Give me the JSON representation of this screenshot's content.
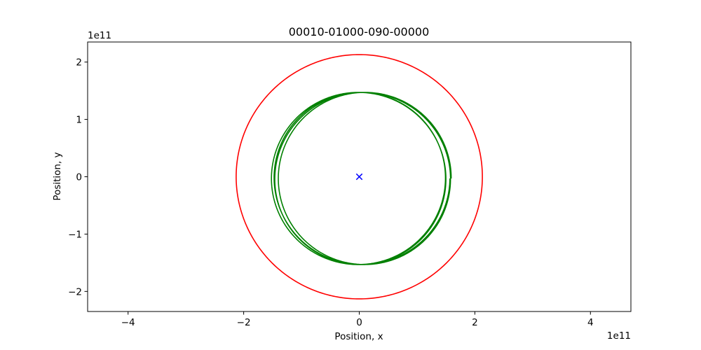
{
  "chart_data": {
    "type": "line",
    "title": "00010-01000-090-00000",
    "xlabel": "Position, x",
    "ylabel": "Position, y",
    "x_offset_text": "1e11",
    "y_offset_text": "1e11",
    "xlim": [
      -4.7,
      4.7
    ],
    "ylim": [
      -2.35,
      2.35
    ],
    "x_ticks": [
      {
        "value": -4,
        "label": "−4"
      },
      {
        "value": -2,
        "label": "−2"
      },
      {
        "value": 0,
        "label": "0"
      },
      {
        "value": 2,
        "label": "2"
      },
      {
        "value": 4,
        "label": "4"
      }
    ],
    "y_ticks": [
      {
        "value": -2,
        "label": "−2"
      },
      {
        "value": -1,
        "label": "−1"
      },
      {
        "value": 0,
        "label": "0"
      },
      {
        "value": 1,
        "label": "1"
      },
      {
        "value": 2,
        "label": "2"
      }
    ],
    "units_scale": "1e11",
    "grid": false,
    "aspect": "equal",
    "series": [
      {
        "color": "#ff0000",
        "kind": "orbit",
        "center": [
          0,
          0
        ],
        "radius": 2.13,
        "radius_variation": 0.0,
        "loops": 1
      },
      {
        "color": "#008000",
        "kind": "orbit",
        "center": [
          0.04,
          -0.03
        ],
        "radius": 1.5,
        "radius_variation": 0.06,
        "loops": 4
      },
      {
        "color": "#0000ff",
        "kind": "marker",
        "marker": "x",
        "x": [
          0
        ],
        "y": [
          0
        ]
      }
    ]
  }
}
